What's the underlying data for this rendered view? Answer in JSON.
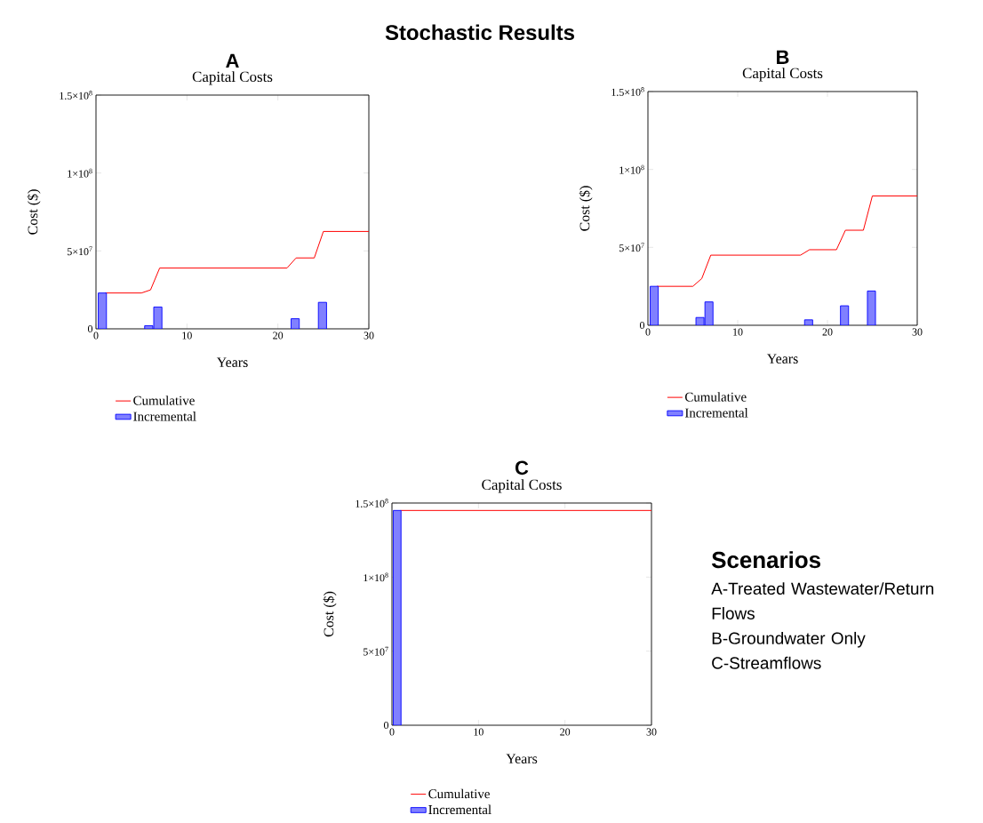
{
  "chart_data": [
    {
      "type": "other",
      "title": "Stochastic Results"
    },
    {
      "type": "bar",
      "title": "A",
      "subtitle": "Capital Costs",
      "xlabel": "Years",
      "ylabel": "Cost ($)",
      "legend": "bottom",
      "xlim": [
        0,
        30
      ],
      "ylim": [
        0,
        150000000
      ],
      "xticks": [
        0,
        10,
        20,
        30
      ],
      "yticks": [
        0,
        {
          "value": 50000000,
          "label": "5×10$^{7}$"
        },
        {
          "value": 100000000,
          "label": "1×10$^{8}$"
        },
        {
          "value": 150000000,
          "label": "1.5×10$^{8}$"
        }
      ],
      "series": [
        {
          "name": "Cumulative",
          "type": "line",
          "color": "#ff0000",
          "x": [
            1,
            5,
            6,
            7,
            21,
            22,
            24,
            25,
            30
          ],
          "values": [
            23000000,
            23000000,
            25000000,
            39000000,
            39000000,
            45500000,
            45500000,
            62500000,
            62500000
          ]
        },
        {
          "name": "Incremental",
          "type": "bar",
          "color": "#8080ff",
          "x": [
            0.7,
            5.8,
            6.8,
            21.9,
            24.9
          ],
          "values": [
            23000000,
            2000000,
            14000000,
            6500000,
            17000000
          ]
        }
      ]
    },
    {
      "type": "bar",
      "title": "B",
      "subtitle": "Capital Costs",
      "xlabel": "Years",
      "ylabel": "Cost ($)",
      "legend": "bottom",
      "xlim": [
        0,
        30
      ],
      "ylim": [
        0,
        150000000
      ],
      "xticks": [
        0,
        10,
        20,
        30
      ],
      "yticks": [
        0,
        {
          "value": 50000000,
          "label": "5×10$^{7}$"
        },
        {
          "value": 100000000,
          "label": "1×10$^{8}$"
        },
        {
          "value": 150000000,
          "label": "1.5×10$^{8}$"
        }
      ],
      "series": [
        {
          "name": "Cumulative",
          "type": "line",
          "color": "#ff0000",
          "x": [
            1,
            5,
            6,
            7,
            17,
            18,
            21,
            22,
            24,
            25,
            30
          ],
          "values": [
            25000000,
            25000000,
            30000000,
            45000000,
            45000000,
            48500000,
            48500000,
            61000000,
            61000000,
            83000000,
            83000000
          ]
        },
        {
          "name": "Incremental",
          "type": "bar",
          "color": "#8080ff",
          "x": [
            0.7,
            5.8,
            6.8,
            17.9,
            21.9,
            24.9
          ],
          "values": [
            25000000,
            5000000,
            15000000,
            3500000,
            12500000,
            22000000
          ]
        }
      ]
    },
    {
      "type": "bar",
      "title": "C",
      "subtitle": "Capital Costs",
      "xlabel": "Years",
      "ylabel": "Cost ($)",
      "legend": "bottom",
      "xlim": [
        0,
        30
      ],
      "ylim": [
        0,
        150000000
      ],
      "xticks": [
        0,
        10,
        20,
        30
      ],
      "yticks": [
        0,
        {
          "value": 50000000,
          "label": "5×10$^{7}$"
        },
        {
          "value": 100000000,
          "label": "1×10$^{8}$"
        },
        {
          "value": 150000000,
          "label": "1.5×10$^{8}$"
        }
      ],
      "series": [
        {
          "name": "Cumulative",
          "type": "line",
          "color": "#ff0000",
          "x": [
            1,
            30
          ],
          "values": [
            145000000,
            145000000
          ]
        },
        {
          "name": "Incremental",
          "type": "bar",
          "color": "#8080ff",
          "x": [
            0.6
          ],
          "values": [
            145000000
          ]
        }
      ]
    },
    {
      "type": "other",
      "title": "Scenarios",
      "annotations": [
        "A-Treated Wastewater/Return Flows",
        "B-Groundwater Only",
        "C-Streamflows"
      ]
    }
  ]
}
